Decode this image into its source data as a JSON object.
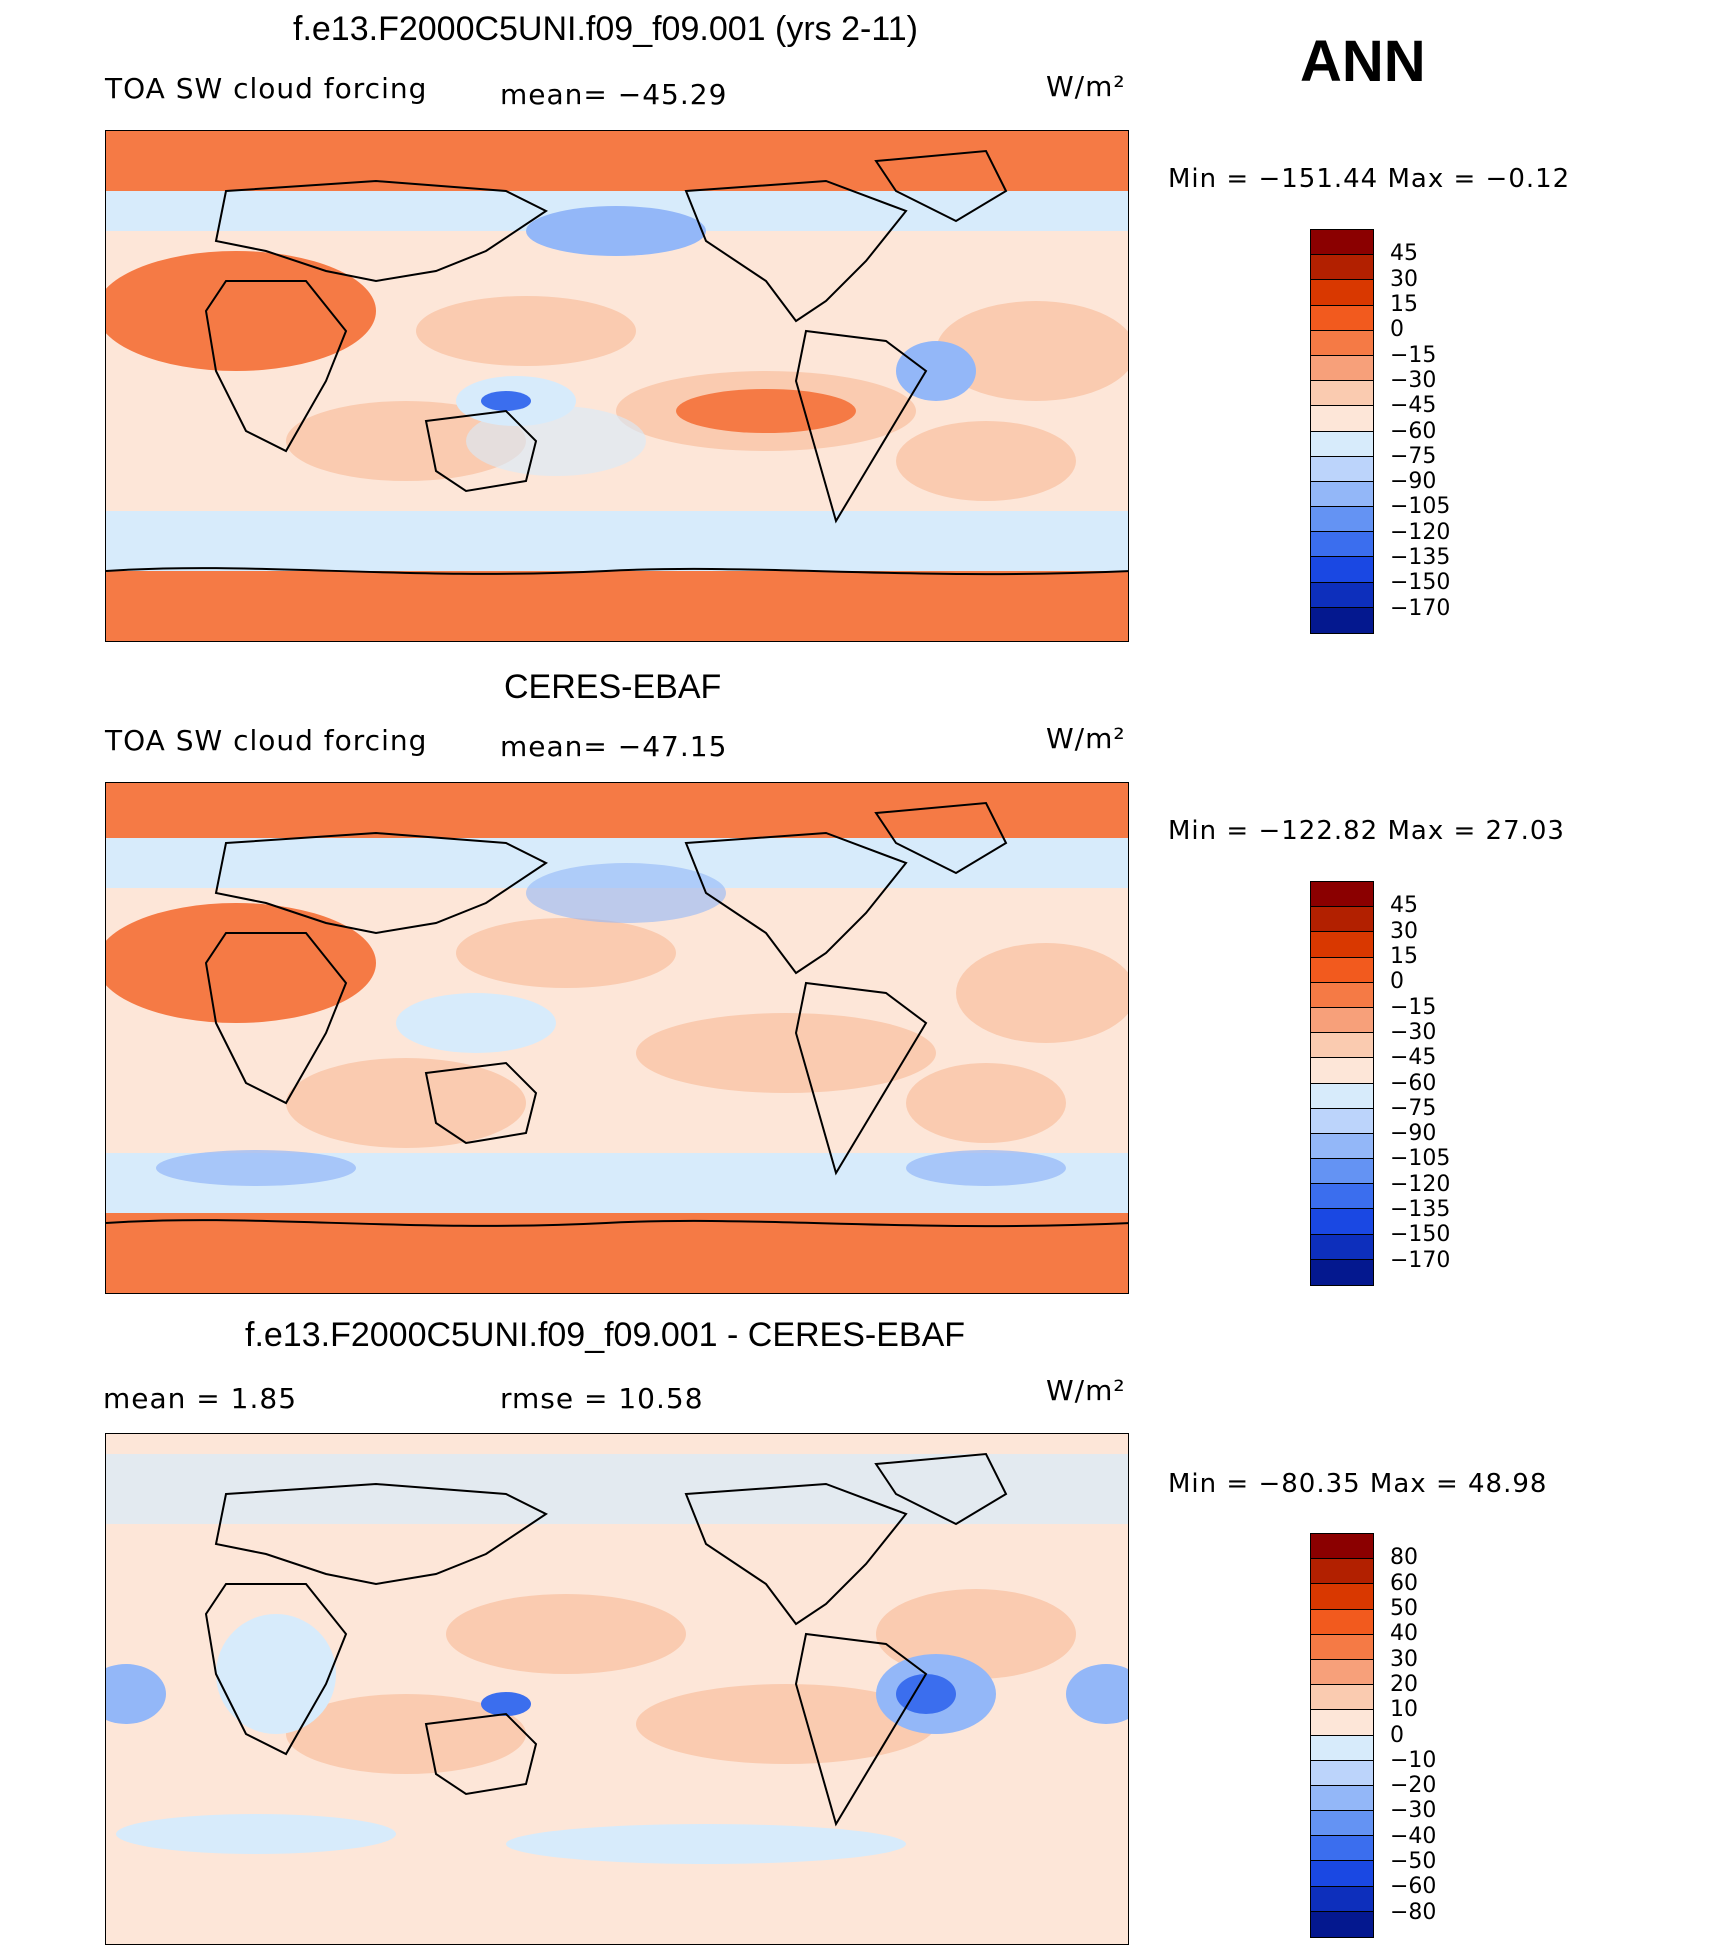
{
  "header": {
    "title_top": "f.e13.F2000C5UNI.f09_f09.001 (yrs 2-11)",
    "season": "ANN"
  },
  "panels": [
    {
      "id": "model",
      "title": "",
      "variable": "TOA SW cloud forcing",
      "mean_text": "mean= −45.29",
      "units": "W/m²",
      "minmax_text": "Min  =  −151.44  Max  =    −0.12",
      "colorbar": {
        "labels": [
          "45",
          "30",
          "15",
          "0",
          "−15",
          "−30",
          "−45",
          "−60",
          "−75",
          "−90",
          "−105",
          "−120",
          "−135",
          "−150",
          "−170"
        ],
        "colors": [
          "#8b0000",
          "#b22000",
          "#d93800",
          "#f25a1e",
          "#f57a45",
          "#f7a07a",
          "#facbb0",
          "#fde6d8",
          "#d7ebfb",
          "#bcd4fb",
          "#93b7f8",
          "#6493f3",
          "#3b6eee",
          "#1a48e3",
          "#0d2fbc",
          "#04188f"
        ]
      }
    },
    {
      "id": "obs",
      "title": "CERES-EBAF",
      "variable": "TOA SW cloud forcing",
      "mean_text": "mean= −47.15",
      "units": "W/m²",
      "minmax_text": "Min  =  −122.82  Max  =    27.03",
      "colorbar": {
        "labels": [
          "45",
          "30",
          "15",
          "0",
          "−15",
          "−30",
          "−45",
          "−60",
          "−75",
          "−90",
          "−105",
          "−120",
          "−135",
          "−150",
          "−170"
        ],
        "colors": [
          "#8b0000",
          "#b22000",
          "#d93800",
          "#f25a1e",
          "#f57a45",
          "#f7a07a",
          "#facbb0",
          "#fde6d8",
          "#d7ebfb",
          "#bcd4fb",
          "#93b7f8",
          "#6493f3",
          "#3b6eee",
          "#1a48e3",
          "#0d2fbc",
          "#04188f"
        ]
      }
    },
    {
      "id": "diff",
      "title": "f.e13.F2000C5UNI.f09_f09.001 - CERES-EBAF",
      "mean_text": "mean  =     1.85",
      "rmse_text": "rmse  =    10.58",
      "units": "W/m²",
      "minmax_text": "Min  =  −80.35  Max  =    48.98",
      "colorbar": {
        "labels": [
          "80",
          "60",
          "50",
          "40",
          "30",
          "20",
          "10",
          "0",
          "−10",
          "−20",
          "−30",
          "−40",
          "−50",
          "−60",
          "−80"
        ],
        "colors": [
          "#8b0000",
          "#b22000",
          "#d93800",
          "#f25a1e",
          "#f57a45",
          "#f7a07a",
          "#facbb0",
          "#fde6d8",
          "#d7ebfb",
          "#bcd4fb",
          "#93b7f8",
          "#6493f3",
          "#3b6eee",
          "#1a48e3",
          "#0d2fbc",
          "#04188f"
        ]
      }
    }
  ],
  "map_colors": {
    "polar": "#f57a45",
    "subtropic": "#facbb0",
    "pale": "#fde6d8",
    "lightblue": "#d7ebfb",
    "blue": "#93b7f8",
    "deepblue": "#3b6eee",
    "coast": "#000000"
  }
}
